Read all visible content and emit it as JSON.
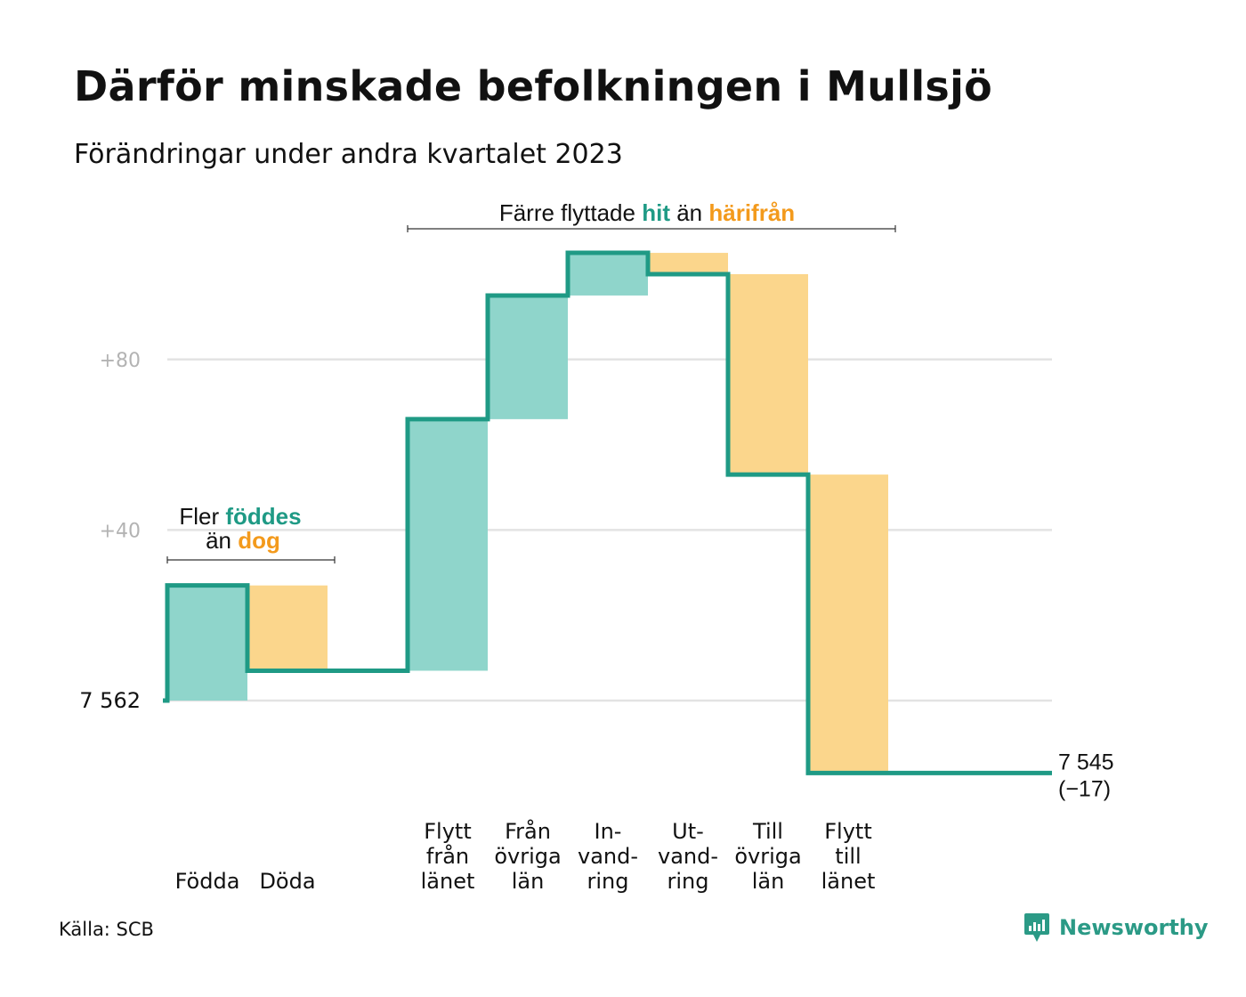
{
  "title": "Därför minskade befolkningen i Mullsjö",
  "subtitle": "Förändringar under andra kvartalet 2023",
  "source": "Källa: SCB",
  "brand": "Newsworthy",
  "colors": {
    "increase": "#8fd5cb",
    "decrease": "#fbd68c",
    "line": "#1f9a85",
    "accent_orange": "#f39a1c",
    "grid": "#e3e3e3"
  },
  "annotations": {
    "births_deaths": {
      "line1_pre": "Fler ",
      "line1_hi": "föddes",
      "line2_pre": "än ",
      "line2_hi": "dog"
    },
    "moves": {
      "pre": "Färre flyttade ",
      "hi1": "hit",
      "mid": " än ",
      "hi2": "härifrån"
    }
  },
  "chart_data": {
    "type": "waterfall",
    "start_value": 7562,
    "start_label": "7  562",
    "end_label_value": "7 545",
    "end_label_change": "(−17)",
    "y_ticks": [
      {
        "value": 80,
        "label": "+80"
      },
      {
        "value": 40,
        "label": "+40"
      }
    ],
    "ylim": [
      -17,
      106
    ],
    "grid": true,
    "steps": [
      {
        "group": 0,
        "label": [
          "Födda"
        ],
        "change": 27
      },
      {
        "group": 0,
        "label": [
          "Döda"
        ],
        "change": -20
      },
      {
        "group": 1,
        "label": [
          "Flytt",
          "från",
          "länet"
        ],
        "change": 59
      },
      {
        "group": 1,
        "label": [
          "Från",
          "övriga",
          "län"
        ],
        "change": 29
      },
      {
        "group": 1,
        "label": [
          "In-",
          "vand-",
          "ring"
        ],
        "change": 10
      },
      {
        "group": 1,
        "label": [
          "Ut-",
          "vand-",
          "ring"
        ],
        "change": -5
      },
      {
        "group": 1,
        "label": [
          "Till",
          "övriga",
          "län"
        ],
        "change": -47
      },
      {
        "group": 1,
        "label": [
          "Flytt",
          "till",
          "länet"
        ],
        "change": -70
      }
    ]
  }
}
